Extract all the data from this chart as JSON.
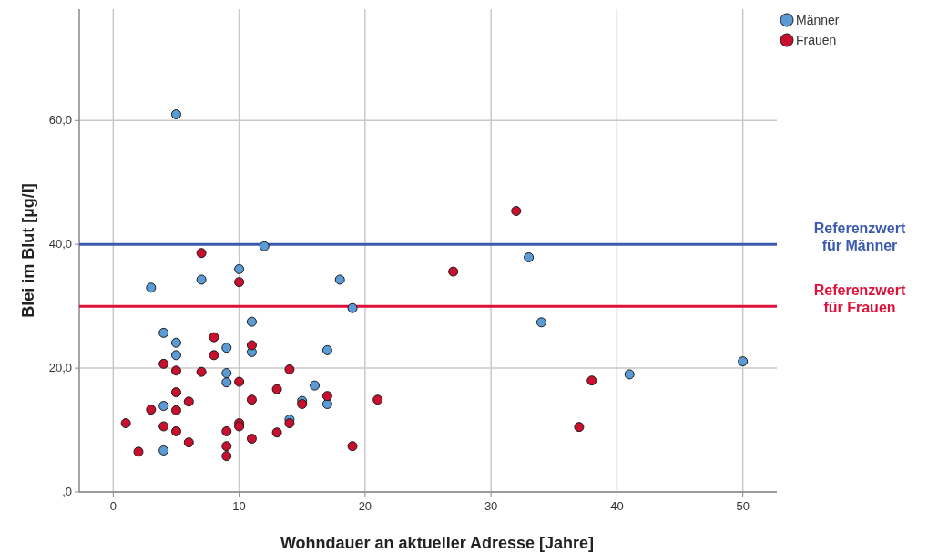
{
  "chart_data": {
    "type": "scatter",
    "xlabel": "Wohndauer an aktueller Adresse [Jahre]",
    "ylabel": "Blei im Blut [µg/l]",
    "xlim": [
      -2.7,
      52.7
    ],
    "ylim": [
      0,
      78
    ],
    "xticks": [
      0,
      10,
      20,
      30,
      40,
      50
    ],
    "yticks": [
      {
        "value": 0,
        "label": ",0"
      },
      {
        "value": 20,
        "label": "20,0"
      },
      {
        "value": 40,
        "label": "40,0"
      },
      {
        "value": 60,
        "label": "60,0"
      }
    ],
    "grid": true,
    "legend": "top right",
    "marker": "circle",
    "series": [
      {
        "name": "Männer",
        "color": "#5b9bd5",
        "x": [
          5,
          12,
          10,
          7,
          18,
          3,
          33,
          19,
          34,
          11,
          4,
          5,
          5,
          9,
          11,
          17,
          9,
          9,
          16,
          15,
          17,
          14,
          4,
          4,
          41,
          50
        ],
        "values": [
          61.0,
          39.7,
          36.0,
          34.3,
          34.3,
          33.0,
          37.9,
          29.7,
          27.4,
          27.5,
          25.7,
          24.1,
          22.1,
          23.3,
          22.6,
          22.9,
          19.2,
          17.7,
          17.2,
          14.7,
          14.2,
          11.7,
          13.9,
          6.7,
          19.0,
          21.1
        ]
      },
      {
        "name": "Frauen",
        "color": "#c8102e",
        "x": [
          32,
          27,
          7,
          10,
          8,
          11,
          8,
          4,
          5,
          7,
          14,
          10,
          13,
          5,
          6,
          11,
          3,
          5,
          1,
          4,
          5,
          6,
          2,
          10,
          10,
          9,
          9,
          9,
          11,
          13,
          15,
          17,
          14,
          19,
          21,
          38,
          37
        ],
        "values": [
          45.4,
          35.6,
          38.6,
          33.9,
          25.0,
          23.7,
          22.1,
          20.7,
          19.6,
          19.4,
          19.8,
          17.8,
          16.6,
          16.1,
          14.6,
          14.9,
          13.3,
          13.2,
          11.1,
          10.6,
          9.8,
          8.0,
          6.5,
          11.1,
          10.6,
          9.8,
          7.4,
          5.8,
          8.6,
          9.6,
          14.2,
          15.5,
          11.1,
          7.4,
          14.9,
          18.0,
          10.5
        ]
      }
    ],
    "ref_lines": [
      {
        "axis": "y",
        "value": 40,
        "label": "Referenzwert\nfür Männer",
        "color": "#3a5ab0"
      },
      {
        "axis": "y",
        "value": 30,
        "label": "Referenzwert\nfür Frauen",
        "color": "#e0103a"
      }
    ]
  }
}
